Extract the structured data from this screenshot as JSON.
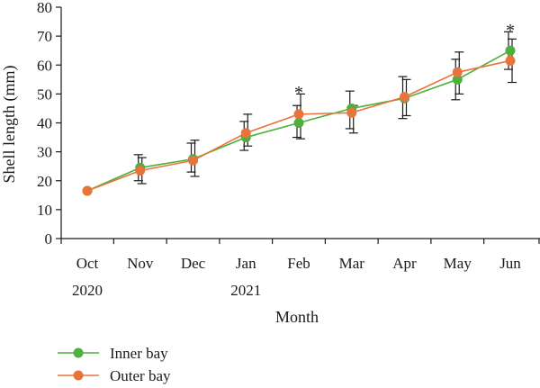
{
  "chart_data": {
    "type": "line",
    "title": "",
    "xlabel": "Month",
    "ylabel": "Shell length (mm)",
    "ylim": [
      0,
      80
    ],
    "yticks": [
      0,
      10,
      20,
      30,
      40,
      50,
      60,
      70,
      80
    ],
    "categories": [
      "Oct",
      "Nov",
      "Dec",
      "Jan",
      "Feb",
      "Mar",
      "Apr",
      "May",
      "Jun"
    ],
    "year_labels": [
      {
        "category": "Oct",
        "label": "2020"
      },
      {
        "category": "Jan",
        "label": "2021"
      }
    ],
    "series": [
      {
        "name": "Inner bay",
        "color": "#4daf3c",
        "values": [
          16.5,
          24.5,
          27.5,
          35.0,
          40.0,
          45.0,
          48.5,
          55.0,
          65.0
        ],
        "err_low": [
          16.5,
          20.0,
          23.0,
          30.5,
          35.0,
          38.0,
          41.5,
          48.0,
          58.5
        ],
        "err_high": [
          16.5,
          29.0,
          33.0,
          40.5,
          46.0,
          51.0,
          56.0,
          62.0,
          71.5
        ]
      },
      {
        "name": "Outer bay",
        "color": "#e8743b",
        "values": [
          16.5,
          23.5,
          27.0,
          36.5,
          43.0,
          43.5,
          49.0,
          57.5,
          61.5
        ],
        "err_low": [
          16.5,
          19.0,
          21.5,
          32.0,
          34.5,
          36.5,
          42.5,
          50.0,
          54.0
        ],
        "err_high": [
          16.5,
          28.0,
          34.0,
          43.0,
          50.0,
          46.0,
          55.0,
          64.5,
          69.0
        ]
      }
    ],
    "annotations": [
      {
        "category": "Feb",
        "y": 51.0,
        "text": "*"
      },
      {
        "category": "Jun",
        "y": 72.5,
        "text": "*"
      }
    ],
    "grid": false,
    "legend_position": "bottom-left"
  }
}
